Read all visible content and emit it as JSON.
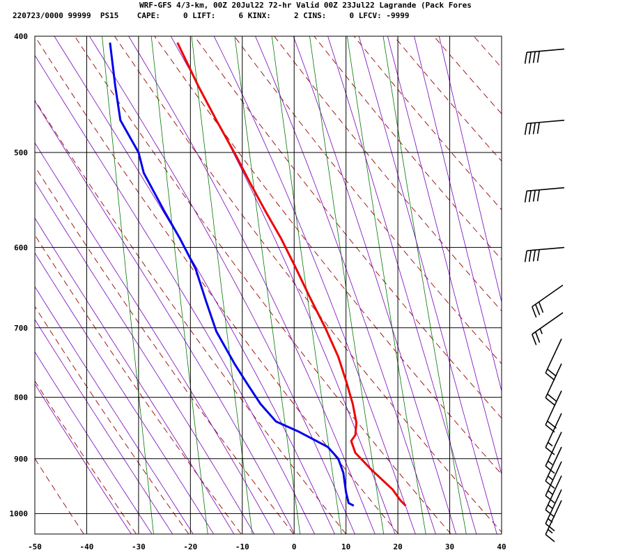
{
  "header": {
    "line1": "WRF-GFS 4/3-km, 00Z 20Jul22 72-hr Valid 00Z 23Jul22 Lagrande (Pack Fores",
    "line2": "220723/0000 99999  PS15    CAPE:     0 LIFT:     6 KINX:     2 CINS:     0 LFCV: -9999"
  },
  "colors": {
    "temperature": "#ee0000",
    "dewpoint": "#0000ee",
    "dry_adiabat": "#990000",
    "moist_adiabat": "#7700bb",
    "mixing_ratio": "#007700",
    "grid": "#000000"
  },
  "chart_data": {
    "type": "line",
    "title": "",
    "xlabel": "",
    "ylabel": "",
    "xlim": [
      -50,
      40
    ],
    "ylim": [
      1040,
      400
    ],
    "x_ticks": [
      "-50",
      "-40",
      "-30",
      "-20",
      "-10",
      "0",
      "10",
      "20",
      "30",
      "40"
    ],
    "y_ticks": [
      "400",
      "500",
      "600",
      "700",
      "800",
      "900",
      "1000"
    ],
    "grid": true,
    "series": [
      {
        "key": "temperature",
        "color": "#ee0000",
        "points": [
          [
            -22.5,
            405
          ],
          [
            -18.5,
            440
          ],
          [
            -15,
            470
          ],
          [
            -11,
            505
          ],
          [
            -8.5,
            530
          ],
          [
            -5.5,
            560
          ],
          [
            -2.5,
            590
          ],
          [
            0,
            620
          ],
          [
            3,
            660
          ],
          [
            6,
            700
          ],
          [
            8.5,
            740
          ],
          [
            10,
            775
          ],
          [
            11.3,
            810
          ],
          [
            12,
            840
          ],
          [
            11.8,
            860
          ],
          [
            11,
            870
          ],
          [
            11.8,
            890
          ],
          [
            15,
            920
          ],
          [
            19,
            955
          ],
          [
            20.5,
            975
          ],
          [
            21.5,
            985
          ]
        ]
      },
      {
        "key": "dewpoint",
        "color": "#0000ee",
        "points": [
          [
            -35.5,
            405
          ],
          [
            -34.5,
            440
          ],
          [
            -33.5,
            470
          ],
          [
            -30,
            500
          ],
          [
            -29,
            520
          ],
          [
            -25,
            560
          ],
          [
            -22,
            590
          ],
          [
            -19,
            625
          ],
          [
            -17,
            665
          ],
          [
            -15,
            705
          ],
          [
            -11.5,
            750
          ],
          [
            -9,
            780
          ],
          [
            -6.5,
            810
          ],
          [
            -3.5,
            838
          ],
          [
            1,
            855
          ],
          [
            6.5,
            880
          ],
          [
            8.5,
            900
          ],
          [
            9.5,
            925
          ],
          [
            10,
            960
          ],
          [
            10.5,
            980
          ],
          [
            11.5,
            985
          ]
        ]
      }
    ],
    "wind_barbs": [
      {
        "pressure": 410,
        "speed_kt": 40
      },
      {
        "pressure": 470,
        "speed_kt": 40
      },
      {
        "pressure": 535,
        "speed_kt": 40
      },
      {
        "pressure": 600,
        "speed_kt": 40
      },
      {
        "pressure": 645,
        "speed_kt": 30
      },
      {
        "pressure": 680,
        "speed_kt": 25
      },
      {
        "pressure": 715,
        "speed_kt": 20
      },
      {
        "pressure": 750,
        "speed_kt": 20
      },
      {
        "pressure": 790,
        "speed_kt": 20
      },
      {
        "pressure": 825,
        "speed_kt": 15
      },
      {
        "pressure": 855,
        "speed_kt": 15
      },
      {
        "pressure": 880,
        "speed_kt": 15
      },
      {
        "pressure": 905,
        "speed_kt": 15
      },
      {
        "pressure": 930,
        "speed_kt": 15
      },
      {
        "pressure": 955,
        "speed_kt": 15
      },
      {
        "pressure": 975,
        "speed_kt": 15
      }
    ]
  }
}
